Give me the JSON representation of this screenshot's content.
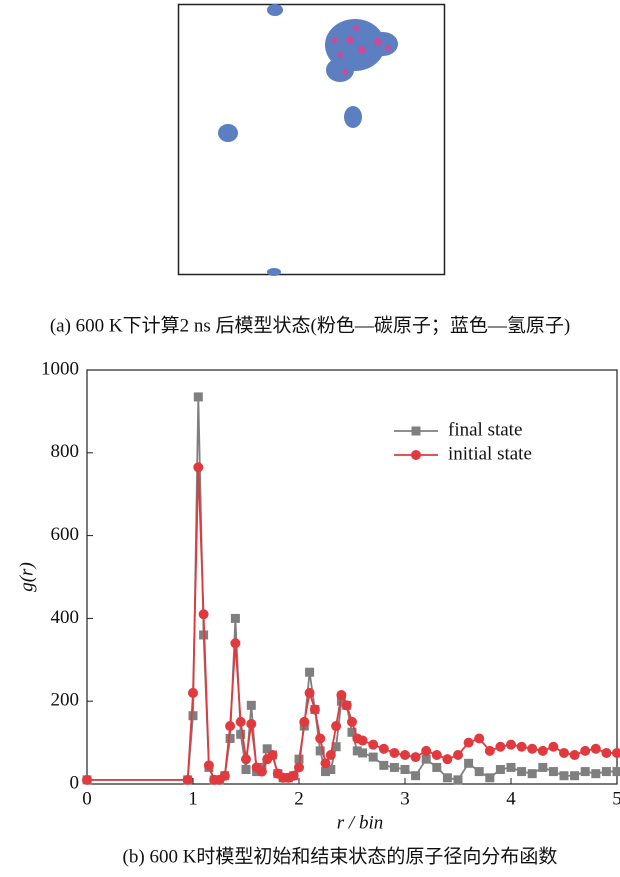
{
  "caption_a": "(a) 600 K下计算2 ns 后模型状态(粉色—碳原子；蓝色—氢原子)",
  "caption_b": "(b) 600 K时模型初始和结束状态的原子径向分布函数",
  "chart_data": {
    "type": "line",
    "x_label": "r / bin",
    "y_label": "g(r)",
    "x": [
      0,
      0.95,
      1.0,
      1.05,
      1.1,
      1.15,
      1.2,
      1.25,
      1.3,
      1.35,
      1.4,
      1.45,
      1.5,
      1.55,
      1.6,
      1.65,
      1.7,
      1.75,
      1.8,
      1.85,
      1.9,
      1.95,
      2.0,
      2.05,
      2.1,
      2.15,
      2.2,
      2.25,
      2.3,
      2.35,
      2.4,
      2.45,
      2.5,
      2.55,
      2.6,
      2.7,
      2.8,
      2.9,
      3.0,
      3.1,
      3.2,
      3.3,
      3.4,
      3.5,
      3.6,
      3.7,
      3.8,
      3.9,
      4.0,
      4.1,
      4.2,
      4.3,
      4.4,
      4.5,
      4.6,
      4.7,
      4.8,
      4.9,
      5.0
    ],
    "series": [
      {
        "name": "final state",
        "color": "#7f7f7f",
        "marker": "square",
        "values": [
          10,
          10,
          165,
          935,
          360,
          40,
          10,
          10,
          20,
          110,
          400,
          120,
          35,
          190,
          30,
          40,
          85,
          70,
          25,
          15,
          15,
          20,
          60,
          140,
          270,
          180,
          80,
          30,
          35,
          90,
          200,
          190,
          125,
          80,
          75,
          65,
          45,
          40,
          35,
          20,
          60,
          40,
          15,
          10,
          50,
          30,
          15,
          35,
          40,
          30,
          25,
          40,
          30,
          20,
          20,
          30,
          25,
          30,
          30
        ]
      },
      {
        "name": "initial state",
        "color": "#e0393e",
        "marker": "circle",
        "values": [
          10,
          10,
          220,
          765,
          410,
          45,
          10,
          10,
          20,
          140,
          340,
          150,
          60,
          145,
          40,
          30,
          60,
          70,
          25,
          15,
          15,
          20,
          40,
          150,
          220,
          180,
          110,
          50,
          70,
          140,
          215,
          190,
          150,
          110,
          105,
          95,
          85,
          75,
          70,
          65,
          80,
          70,
          60,
          70,
          100,
          110,
          80,
          90,
          95,
          90,
          85,
          80,
          90,
          75,
          70,
          80,
          85,
          75,
          75
        ]
      }
    ],
    "xlim": [
      0,
      5
    ],
    "xticks": [
      0,
      1,
      2,
      3,
      4,
      5
    ],
    "ylim": [
      0,
      1000
    ],
    "yticks": [
      0,
      200,
      400,
      600,
      800,
      1000
    ],
    "legend": "upper right",
    "grid": false
  }
}
